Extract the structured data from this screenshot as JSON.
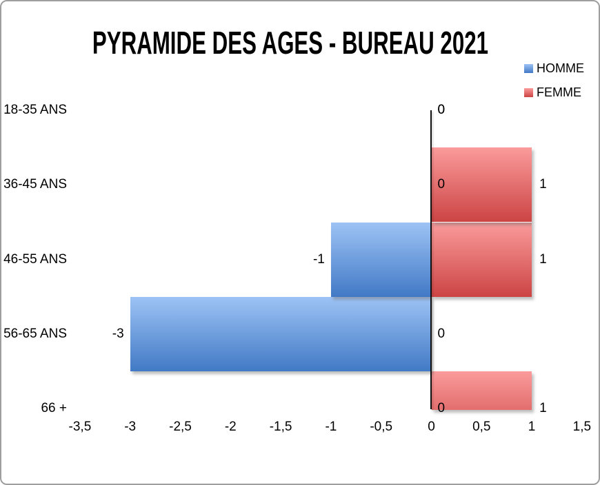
{
  "chart_data": {
    "type": "bar",
    "orientation": "horizontal-pyramid",
    "title": "PYRAMIDE DES AGES - BUREAU 2021",
    "categories": [
      "18-35 ANS",
      "36-45 ANS",
      "46-55 ANS",
      "56-65 ANS",
      "66 +"
    ],
    "series": [
      {
        "name": "HOMME",
        "values": [
          0,
          0,
          -1,
          -3,
          0
        ],
        "data_labels": [
          "0",
          "0",
          "-1",
          "-3",
          "0"
        ],
        "color_top": "#9dc3f5",
        "color_bottom": "#4179c5"
      },
      {
        "name": "FEMME",
        "values": [
          0,
          1,
          1,
          0,
          1
        ],
        "data_labels": [
          "0",
          "1",
          "1",
          "0",
          "1"
        ],
        "color_top": "#fb9b9b",
        "color_bottom": "#cc4444"
      }
    ],
    "x_axis": {
      "min": -3.5,
      "max": 1.5,
      "tick_values": [
        -3.5,
        -3,
        -2.5,
        -2,
        -1.5,
        -1,
        -0.5,
        0,
        0.5,
        1,
        1.5
      ],
      "tick_labels": [
        "-3,5",
        "-3",
        "-2,5",
        "-2",
        "-1,5",
        "-1",
        "-0,5",
        "0",
        "0,5",
        "1",
        "1,5"
      ]
    },
    "legend": {
      "position": "top-right",
      "entries": [
        "HOMME",
        "FEMME"
      ]
    },
    "grid": false,
    "axis_line_color": "#111111",
    "border_color": "#9e9e9e"
  }
}
